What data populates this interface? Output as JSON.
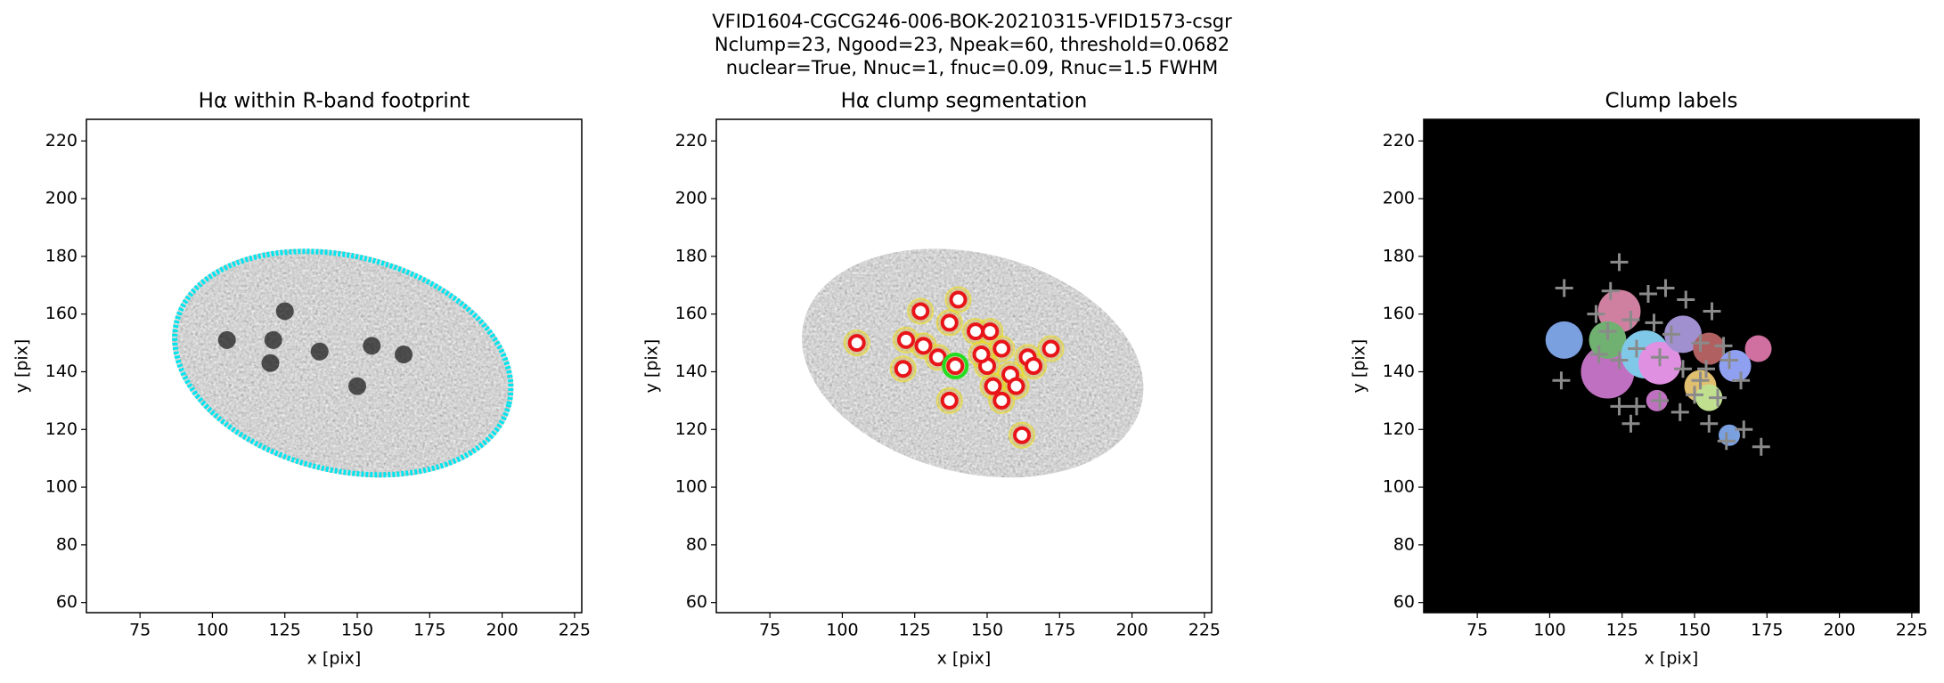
{
  "suptitle": [
    "VFID1604-CGCG246-006-BOK-20210315-VFID1573-csgr",
    "Nclump=23, Ngood=23, Npeak=60, threshold=0.0682",
    "nuclear=True, Nnuc=1, fnuc=0.09, Rnuc=1.5 FWHM"
  ],
  "chart_data": [
    {
      "type": "image",
      "title": "Hα within R-band footprint",
      "xlabel": "x [pix]",
      "ylabel": "y [pix]",
      "xlim": [
        56.5,
        227.5
      ],
      "ylim": [
        56.5,
        227.5
      ],
      "xticks": [
        75,
        100,
        125,
        150,
        175,
        200,
        225
      ],
      "yticks": [
        60,
        80,
        100,
        120,
        140,
        160,
        180,
        200,
        220
      ],
      "background": "#ffffff",
      "outline_color": "#00e5ee"
    },
    {
      "type": "image",
      "title": "Hα clump segmentation",
      "xlabel": "x [pix]",
      "ylabel": "y [pix]",
      "xlim": [
        56.5,
        227.5
      ],
      "ylim": [
        56.5,
        227.5
      ],
      "xticks": [
        75,
        100,
        125,
        150,
        175,
        200,
        225
      ],
      "yticks": [
        60,
        80,
        100,
        120,
        140,
        160,
        180,
        200,
        220
      ],
      "background": "#ffffff",
      "points": {
        "color": "#e8141a",
        "marker": "circle",
        "x": [
          105,
          127,
          140,
          137,
          122,
          128,
          133,
          146,
          151,
          155,
          121,
          139,
          150,
          158,
          164,
          166,
          172,
          152,
          160,
          137,
          155,
          162,
          148
        ],
        "y": [
          150,
          161,
          165,
          157,
          151,
          149,
          145,
          154,
          154,
          148,
          141,
          142,
          142,
          139,
          145,
          142,
          148,
          135,
          135,
          130,
          130,
          118,
          146
        ]
      },
      "nucleus": {
        "x": 139,
        "y": 142,
        "color": "#22dd22"
      }
    },
    {
      "type": "image",
      "title": "Clump labels",
      "xlabel": "x [pix]",
      "ylabel": "y [pix]",
      "xlim": [
        56.5,
        227.5
      ],
      "ylim": [
        56.5,
        227.5
      ],
      "xticks": [
        75,
        100,
        125,
        150,
        175,
        200,
        225
      ],
      "yticks": [
        60,
        80,
        100,
        120,
        140,
        160,
        180,
        200,
        220
      ],
      "background": "#000000",
      "points": {
        "color": "#8a8a8a",
        "marker": "plus",
        "x": [
          105,
          104,
          124,
          121,
          116,
          134,
          140,
          147,
          156,
          120,
          128,
          136,
          142,
          152,
          160,
          117,
          124,
          130,
          138,
          146,
          154,
          162,
          166,
          124,
          130,
          138,
          145,
          150,
          158,
          155,
          161,
          167,
          173,
          128,
          152
        ],
        "y": [
          169,
          137,
          178,
          168,
          160,
          167,
          169,
          165,
          161,
          154,
          158,
          157,
          153,
          150,
          149,
          146,
          144,
          148,
          145,
          141,
          141,
          144,
          137,
          128,
          128,
          130,
          126,
          132,
          131,
          122,
          116,
          120,
          114,
          122,
          137
        ]
      }
    }
  ]
}
